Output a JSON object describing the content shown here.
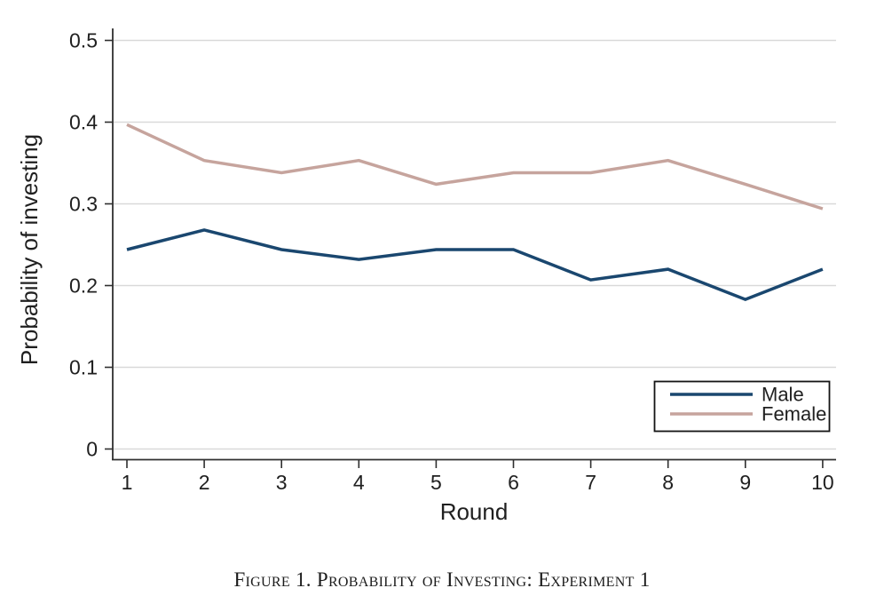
{
  "figure": {
    "caption": "Figure 1. Probability of Investing: Experiment 1"
  },
  "chart_data": {
    "type": "line",
    "title": "",
    "xlabel": "Round",
    "ylabel": "Probability of investing",
    "x": [
      1,
      2,
      3,
      4,
      5,
      6,
      7,
      8,
      9,
      10
    ],
    "xlim": [
      1,
      10
    ],
    "ylim": [
      0,
      0.5
    ],
    "yticks": [
      0,
      0.1,
      0.2,
      0.3,
      0.4,
      0.5
    ],
    "ytick_labels": [
      "0",
      "0.1",
      "0.2",
      "0.3",
      "0.4",
      "0.5"
    ],
    "grid": "horizontal-only",
    "legend_position": "inside-bottom-right",
    "series": [
      {
        "name": "Male",
        "color": "#1a476f",
        "values": [
          0.244,
          0.268,
          0.244,
          0.232,
          0.244,
          0.244,
          0.207,
          0.22,
          0.183,
          0.22
        ]
      },
      {
        "name": "Female",
        "color": "#c6a49d",
        "values": [
          0.397,
          0.353,
          0.338,
          0.353,
          0.324,
          0.338,
          0.338,
          0.353,
          0.324,
          0.294
        ]
      }
    ],
    "colors": {
      "axis": "#2f2f2f",
      "grid": "#d9d9d9",
      "legend_border": "#141414",
      "background": "#ffffff"
    }
  }
}
